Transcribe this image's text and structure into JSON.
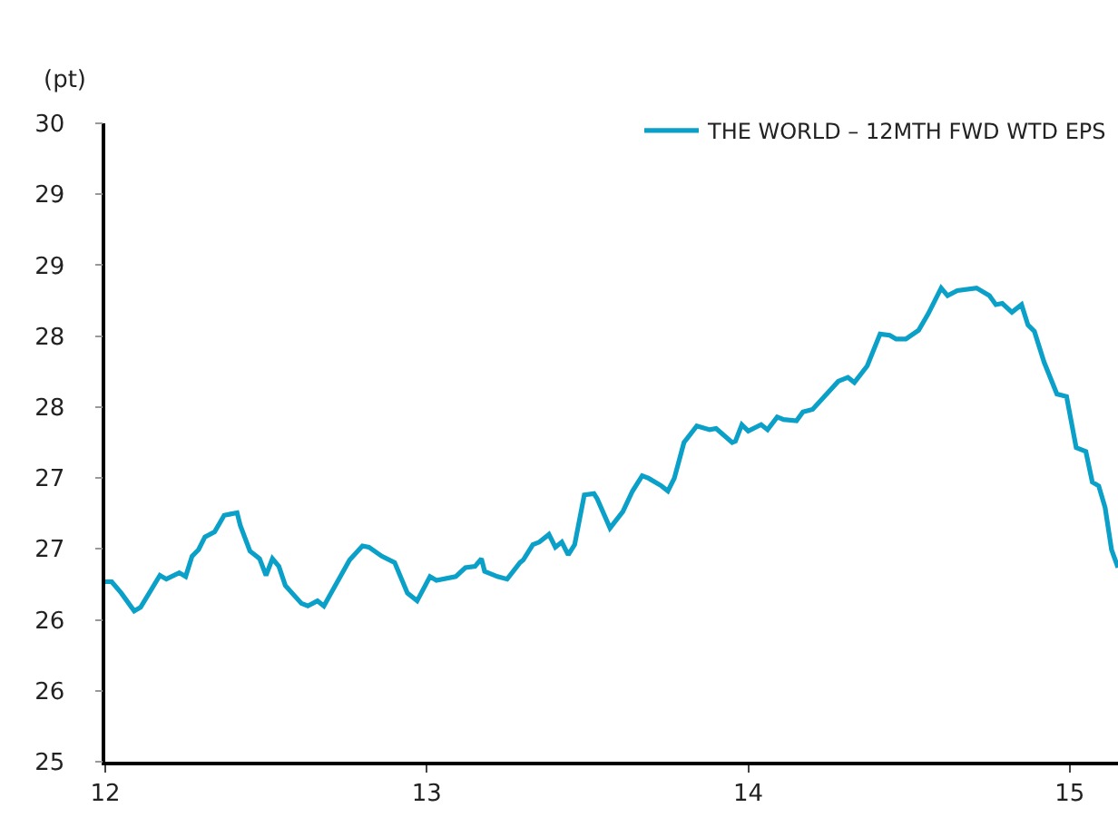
{
  "chart_data": {
    "type": "line",
    "ylabel": "(pt)",
    "legend": "top right",
    "marker": "none",
    "line_style": "solid",
    "xlim": [
      12,
      15.15
    ],
    "xticks": [
      12,
      13,
      14,
      15
    ],
    "ylim": [
      25,
      30
    ],
    "yticks": [
      {
        "value": 25,
        "label": "25"
      },
      {
        "value": 25.556,
        "label": "26"
      },
      {
        "value": 26.111,
        "label": "26"
      },
      {
        "value": 26.667,
        "label": "27"
      },
      {
        "value": 27.222,
        "label": "27"
      },
      {
        "value": 27.778,
        "label": "28"
      },
      {
        "value": 28.333,
        "label": "28"
      },
      {
        "value": 28.889,
        "label": "29"
      },
      {
        "value": 29.444,
        "label": "29"
      },
      {
        "value": 30,
        "label": "30"
      }
    ],
    "series": [
      {
        "name": "THE WORLD – 12MTH FWD WTD EPS",
        "color": "#0aa0c8",
        "x": [
          12.0,
          12.02,
          12.05,
          12.09,
          12.11,
          12.17,
          12.19,
          12.23,
          12.25,
          12.27,
          12.29,
          12.31,
          12.34,
          12.37,
          12.41,
          12.42,
          12.45,
          12.47,
          12.48,
          12.5,
          12.52,
          12.54,
          12.56,
          12.61,
          12.63,
          12.66,
          12.68,
          12.7,
          12.76,
          12.8,
          12.82,
          12.86,
          12.9,
          12.94,
          12.97,
          13.01,
          13.03,
          13.09,
          13.12,
          13.15,
          13.17,
          13.18,
          13.22,
          13.25,
          13.29,
          13.3,
          13.33,
          13.35,
          13.38,
          13.4,
          13.42,
          13.44,
          13.46,
          13.49,
          13.52,
          13.53,
          13.57,
          13.61,
          13.64,
          13.67,
          13.69,
          13.73,
          13.75,
          13.77,
          13.8,
          13.84,
          13.88,
          13.9,
          13.95,
          13.96,
          13.98,
          14.0,
          14.04,
          14.06,
          14.09,
          14.11,
          14.15,
          14.17,
          14.2,
          14.24,
          14.28,
          14.31,
          14.33,
          14.37,
          14.41,
          14.44,
          14.46,
          14.49,
          14.53,
          14.56,
          14.6,
          14.62,
          14.65,
          14.71,
          14.75,
          14.77,
          14.79,
          14.82,
          14.85,
          14.87,
          14.89,
          14.92,
          14.96,
          14.99,
          15.02,
          15.05,
          15.07,
          15.09,
          15.11,
          15.13,
          15.15
        ],
        "values": [
          26.41,
          26.41,
          26.32,
          26.18,
          26.21,
          26.46,
          26.43,
          26.48,
          26.45,
          26.61,
          26.66,
          26.76,
          26.8,
          26.93,
          26.95,
          26.85,
          26.65,
          26.61,
          26.59,
          26.46,
          26.59,
          26.53,
          26.38,
          26.24,
          26.22,
          26.26,
          26.22,
          26.31,
          26.58,
          26.69,
          26.68,
          26.61,
          26.56,
          26.32,
          26.26,
          26.45,
          26.42,
          26.45,
          26.52,
          26.53,
          26.59,
          26.49,
          26.45,
          26.43,
          26.56,
          26.58,
          26.7,
          26.72,
          26.78,
          26.68,
          26.72,
          26.62,
          26.7,
          27.09,
          27.1,
          27.06,
          26.83,
          26.96,
          27.12,
          27.24,
          27.22,
          27.16,
          27.12,
          27.22,
          27.5,
          27.63,
          27.6,
          27.61,
          27.5,
          27.51,
          27.64,
          27.59,
          27.64,
          27.6,
          27.7,
          27.68,
          27.67,
          27.74,
          27.76,
          27.87,
          27.98,
          28.01,
          27.97,
          28.1,
          28.35,
          28.34,
          28.31,
          28.31,
          28.38,
          28.51,
          28.71,
          28.65,
          28.69,
          28.71,
          28.65,
          28.58,
          28.59,
          28.52,
          28.58,
          28.42,
          28.37,
          28.13,
          27.88,
          27.86,
          27.46,
          27.43,
          27.19,
          27.16,
          26.99,
          26.66,
          26.52
        ]
      }
    ]
  }
}
